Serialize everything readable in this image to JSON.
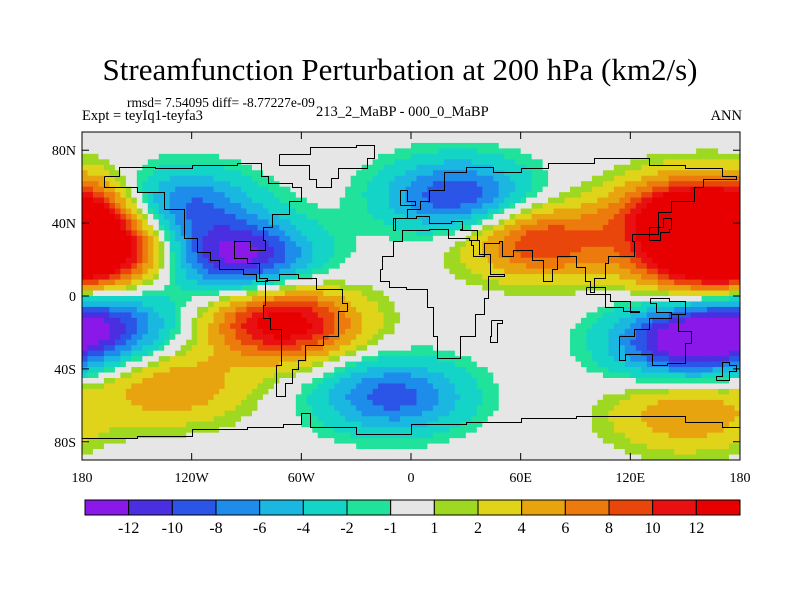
{
  "title": "Streamfunction Perturbation at 200 hPa (km2/s)",
  "stats": "rmsd= 7.54095 diff= -8.77227e-09",
  "experiment": "Expt = teyIq1-teyfa3",
  "case": "213_2_MaBP - 000_0_MaBP",
  "season": "ANN",
  "colors": {
    "missing": "#e6e6e6",
    "coast": "#000000"
  },
  "map": {
    "lon_range": [
      -180,
      180
    ],
    "lat_range": [
      -90,
      90
    ],
    "lat_ticks": [
      {
        "value": 80,
        "label": "80N"
      },
      {
        "value": 40,
        "label": "40N"
      },
      {
        "value": 0,
        "label": "0"
      },
      {
        "value": -40,
        "label": "40S"
      },
      {
        "value": -80,
        "label": "80S"
      }
    ],
    "lon_ticks": [
      {
        "value": -180,
        "label": "180"
      },
      {
        "value": -120,
        "label": "120W"
      },
      {
        "value": -60,
        "label": "60W"
      },
      {
        "value": 0,
        "label": "0"
      },
      {
        "value": 60,
        "label": "60E"
      },
      {
        "value": 120,
        "label": "120E"
      },
      {
        "value": 180,
        "label": "180"
      }
    ]
  },
  "chart_data": {
    "type": "heatmap",
    "title": "Streamfunction Perturbation at 200 hPa (km2/s)",
    "projection": "cylindrical equidistant",
    "units": "km2/s",
    "colorbar": {
      "levels": [
        "-12",
        "-10",
        "-8",
        "-6",
        "-4",
        "-2",
        "-1",
        "1",
        "2",
        "4",
        "6",
        "8",
        "10",
        "12"
      ],
      "colors": [
        "#8a18e8",
        "#4a2fe0",
        "#2b55e6",
        "#1e8cea",
        "#1ab8e0",
        "#14d4c8",
        "#20e29a",
        "#e6e6e6",
        "#9ed820",
        "#e0d41a",
        "#e8a40e",
        "#ec7a0c",
        "#e8460a",
        "#e81010",
        "#e80000"
      ]
    },
    "features": [
      {
        "name": "min-north-america-pacific",
        "lon": -95,
        "lat": 22,
        "value": -13
      },
      {
        "name": "min-north-pacific-west",
        "lon": -128,
        "lat": 50,
        "value": -9
      },
      {
        "name": "min-eurasia",
        "lon": 25,
        "lat": 55,
        "value": -10
      },
      {
        "name": "min-south-pacific",
        "lon": -170,
        "lat": -16,
        "value": -10
      },
      {
        "name": "min-australia",
        "lon": 150,
        "lat": -25,
        "value": -13
      },
      {
        "name": "min-south-atlantic-south",
        "lon": -10,
        "lat": -55,
        "value": -9
      },
      {
        "name": "max-south-america-atlantic",
        "lon": -70,
        "lat": -15,
        "value": 14
      },
      {
        "name": "max-west-pacific-north",
        "lon": 150,
        "lat": 45,
        "value": 13
      },
      {
        "name": "max-west-pacific-tropics",
        "lon": 160,
        "lat": 20,
        "value": 13
      },
      {
        "name": "max-asia",
        "lon": 70,
        "lat": 30,
        "value": 10
      },
      {
        "name": "max-dateline-north",
        "lon": -170,
        "lat": 25,
        "value": 12
      },
      {
        "name": "max-dateline-west-north",
        "lon": -178,
        "lat": 48,
        "value": 8
      },
      {
        "name": "max-south-pacific-east",
        "lon": -130,
        "lat": -50,
        "value": 6
      },
      {
        "name": "max-south-indian",
        "lon": 150,
        "lat": -65,
        "value": 6
      }
    ]
  }
}
